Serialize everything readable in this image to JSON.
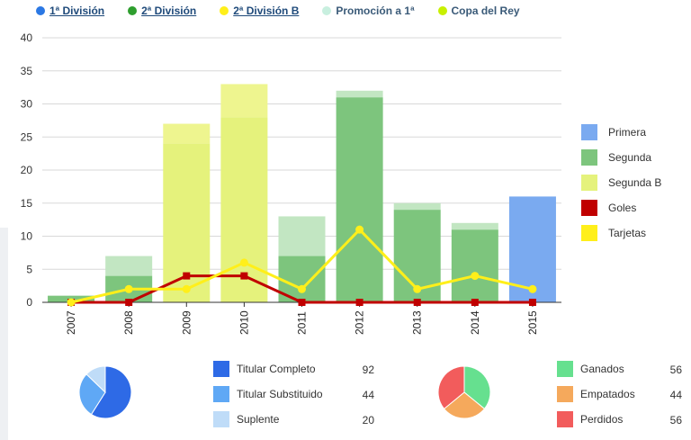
{
  "top_legend": [
    {
      "label": "1ª División",
      "color": "#2b78e4",
      "link": true
    },
    {
      "label": "2ª División",
      "color": "#2e9e2e",
      "link": true
    },
    {
      "label": "2ª División B",
      "color": "#ffef1a",
      "link": true
    },
    {
      "label": "Promoción a 1ª",
      "color": "#c8efdf",
      "link": false
    },
    {
      "label": "Copa del Rey",
      "color": "#c8f000",
      "link": false
    }
  ],
  "chart_data": [
    {
      "type": "bar",
      "categories": [
        "2007",
        "2008",
        "2009",
        "2010",
        "2011",
        "2012",
        "2013",
        "2014",
        "2015"
      ],
      "ylim": [
        0,
        40
      ],
      "yticks": [
        0,
        5,
        10,
        15,
        20,
        25,
        30,
        35,
        40
      ],
      "grid": true,
      "legend_position": "right",
      "series": [
        {
          "name": "Primera",
          "kind": "bar",
          "color": "#7aaaf0",
          "values": [
            0,
            0,
            0,
            0,
            0,
            0,
            0,
            0,
            16
          ]
        },
        {
          "name": "Segunda",
          "kind": "bar",
          "color": "#7dc57d",
          "values": [
            1,
            4,
            0,
            0,
            7,
            31,
            14,
            11,
            0
          ]
        },
        {
          "name": "Segunda B",
          "kind": "bar",
          "color": "#e5f27c",
          "values": [
            0,
            0,
            24,
            28,
            0,
            0,
            0,
            0,
            0
          ]
        },
        {
          "kind": "bar",
          "color": "#c2e6c2",
          "values": [
            0,
            3,
            0,
            0,
            6,
            1,
            1,
            1,
            0
          ]
        },
        {
          "kind": "bar",
          "color": "#eef58f",
          "values": [
            0,
            0,
            3,
            5,
            0,
            0,
            0,
            0,
            0
          ]
        },
        {
          "name": "Goles",
          "kind": "line",
          "color": "#c00000",
          "marker": "square",
          "values": [
            0,
            0,
            4,
            4,
            0,
            0,
            0,
            0,
            0
          ]
        },
        {
          "name": "Tarjetas",
          "kind": "line",
          "color": "#ffef1a",
          "marker": "circle",
          "values": [
            0,
            2,
            2,
            6,
            2,
            11,
            2,
            4,
            2
          ]
        }
      ]
    },
    {
      "type": "pie",
      "slices": [
        {
          "label": "Titular Completo",
          "value": 92,
          "color": "#2e6ae6"
        },
        {
          "label": "Titular Substituido",
          "value": 44,
          "color": "#5fa8f5"
        },
        {
          "label": "Suplente",
          "value": 20,
          "color": "#bfdcf8"
        }
      ]
    },
    {
      "type": "pie",
      "slices": [
        {
          "label": "Ganados",
          "value": 56,
          "color": "#66e08f"
        },
        {
          "label": "Empatados",
          "value": 44,
          "color": "#f5a95c"
        },
        {
          "label": "Perdidos",
          "value": 56,
          "color": "#f25c5c"
        }
      ]
    }
  ]
}
